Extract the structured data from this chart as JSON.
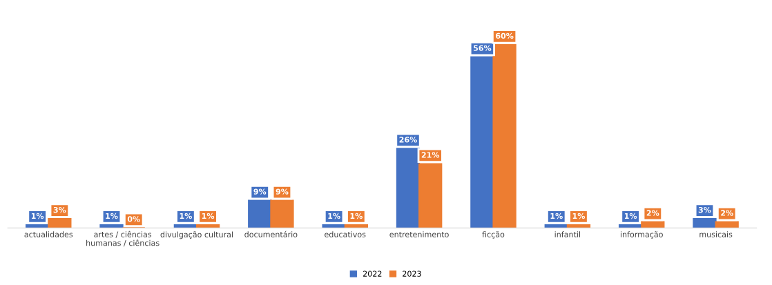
{
  "chart_data": {
    "type": "bar",
    "categories": [
      "actualidades",
      "artes / ciências\nhumanas / ciências",
      "divulgação cultural",
      "documentário",
      "educativos",
      "entretenimento",
      "ficção",
      "infantil",
      "informação",
      "musicais"
    ],
    "series": [
      {
        "name": "2022",
        "color": "#4472c4",
        "values": [
          1,
          1,
          1,
          9,
          1,
          26,
          56,
          1,
          1,
          3
        ],
        "value_labels": [
          "1%",
          "1%",
          "1%",
          "9%",
          "1%",
          "26%",
          "56%",
          "1%",
          "1%",
          "3%"
        ]
      },
      {
        "name": "2023",
        "color": "#ed7d31",
        "values": [
          3,
          0,
          1,
          9,
          1,
          21,
          60,
          1,
          2,
          2
        ],
        "value_labels": [
          "3%",
          "0%",
          "1%",
          "9%",
          "1%",
          "21%",
          "60%",
          "1%",
          "2%",
          "2%"
        ]
      }
    ],
    "grid": false,
    "legend": "bottom"
  }
}
